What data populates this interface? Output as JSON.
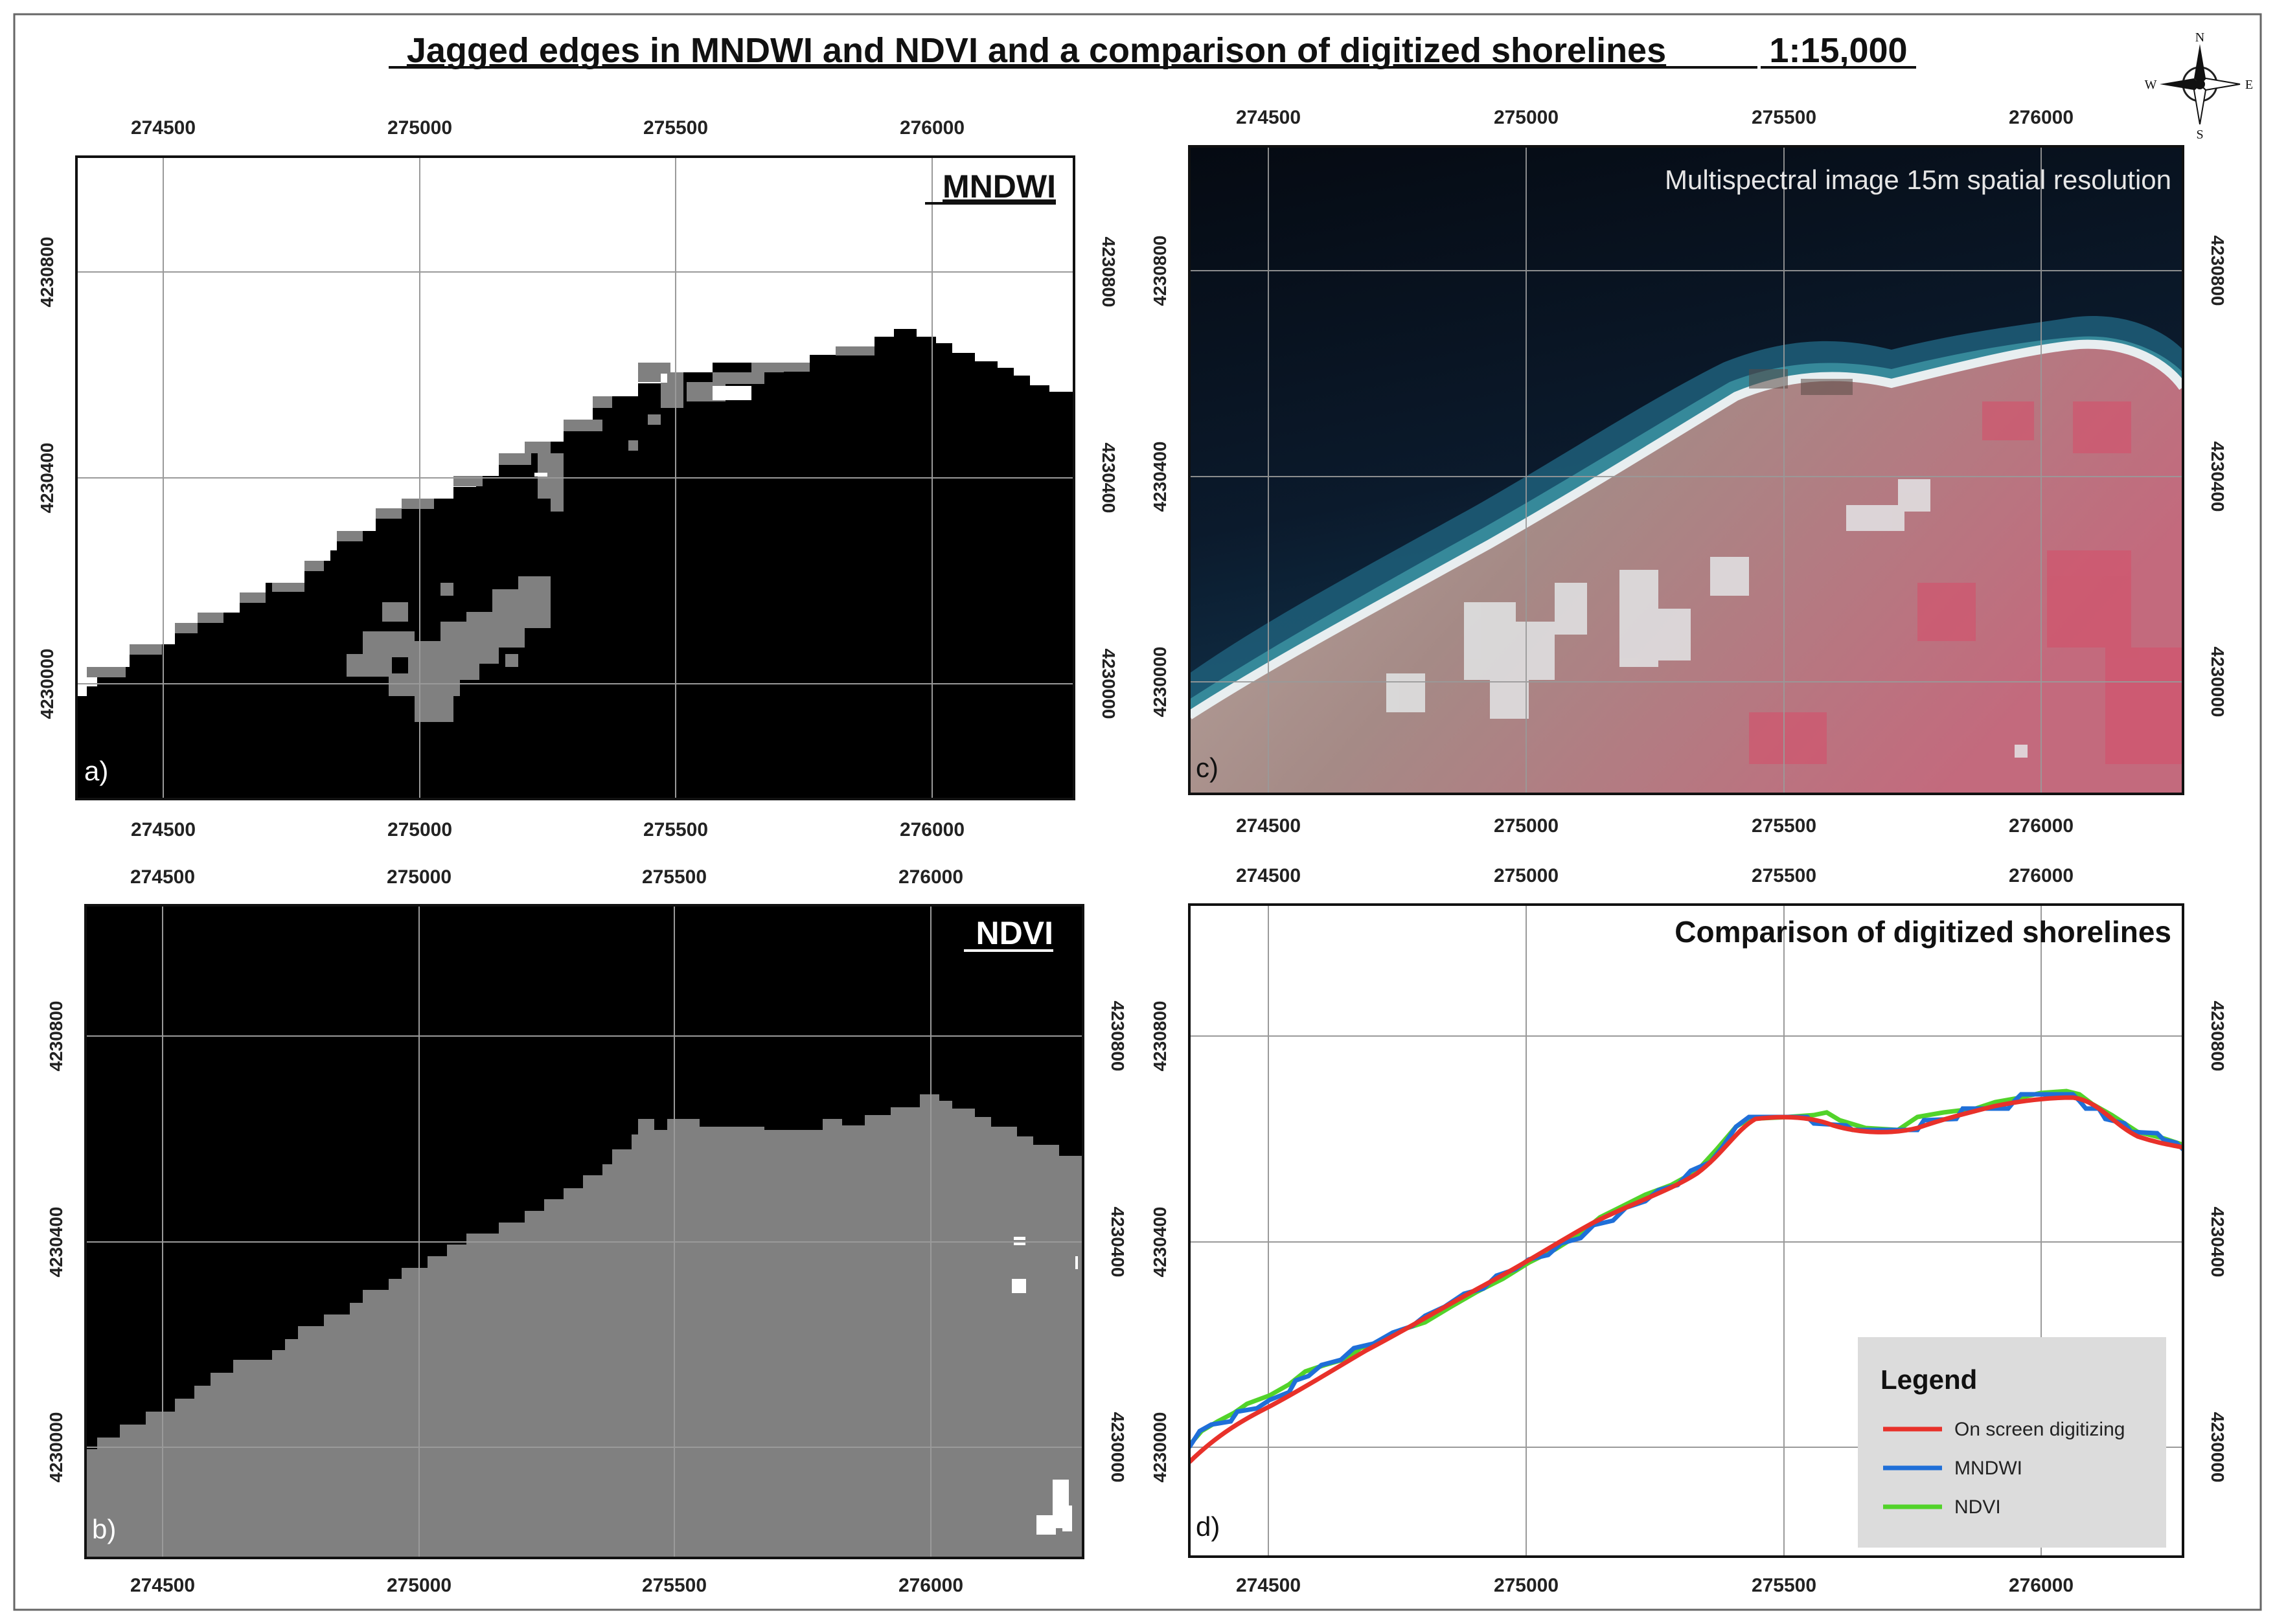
{
  "title": "Jagged edges in MNDWI and NDVI and a comparison of digitized shorelines",
  "scale": "1:15,000",
  "north_arrow": {
    "icon": "north-arrow-icon",
    "n": "N",
    "s": "S",
    "e": "E",
    "w": "W"
  },
  "x_ticks": [
    "274500",
    "275000",
    "275500",
    "276000"
  ],
  "y_ticks": [
    "4230800",
    "4230400",
    "4230000"
  ],
  "panels": {
    "a": {
      "label": "a)",
      "title": "MNDWI"
    },
    "b": {
      "label": "b)",
      "title": "NDVI"
    },
    "c": {
      "label": "c)",
      "title": "Multispectral image 15m spatial resolution"
    },
    "d": {
      "label": "d)",
      "title": "Comparison of digitized shorelines"
    }
  },
  "legend": {
    "title": "Legend",
    "items": [
      {
        "label": "On screen digitizing",
        "color": "#e8312a"
      },
      {
        "label": "MNDWI",
        "color": "#1f6fd8"
      },
      {
        "label": "NDVI",
        "color": "#52d32a"
      }
    ]
  },
  "colors": {
    "water_black": "#000000",
    "land_gray": "#808080",
    "grid": "#9a9a9a"
  }
}
